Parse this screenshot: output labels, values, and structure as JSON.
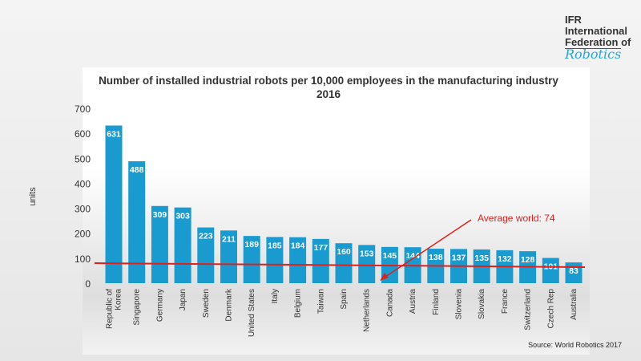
{
  "logo": {
    "line1": "IFR",
    "line2": "International",
    "line3": "Federation of",
    "line4": "Robotics"
  },
  "source": "Source: World Robotics 2017",
  "chart_data": {
    "type": "bar",
    "title": "Number of installed industrial robots per 10,000 employees in the manufacturing industry 2016",
    "ylabel": "units",
    "ylim": [
      0,
      700
    ],
    "yticks": [
      0,
      100,
      200,
      300,
      400,
      500,
      600,
      700
    ],
    "categories": [
      "Republic of Korea",
      "Singapore",
      "Germany",
      "Japan",
      "Sweden",
      "Denmark",
      "United States",
      "Italy",
      "Belgium",
      "Taiwan",
      "Spain",
      "Netherlands",
      "Canada",
      "Austria",
      "Finland",
      "Slovenia",
      "Slovakia",
      "France",
      "Switzerland",
      "Czech Rep",
      "Australia"
    ],
    "values": [
      631,
      488,
      309,
      303,
      223,
      211,
      189,
      185,
      184,
      177,
      160,
      153,
      145,
      144,
      138,
      137,
      135,
      132,
      128,
      101,
      83
    ],
    "bar_color": "#1a9bd0",
    "reference_line": {
      "label": "Average world: 74",
      "value": 74,
      "color": "#e0201a"
    }
  }
}
